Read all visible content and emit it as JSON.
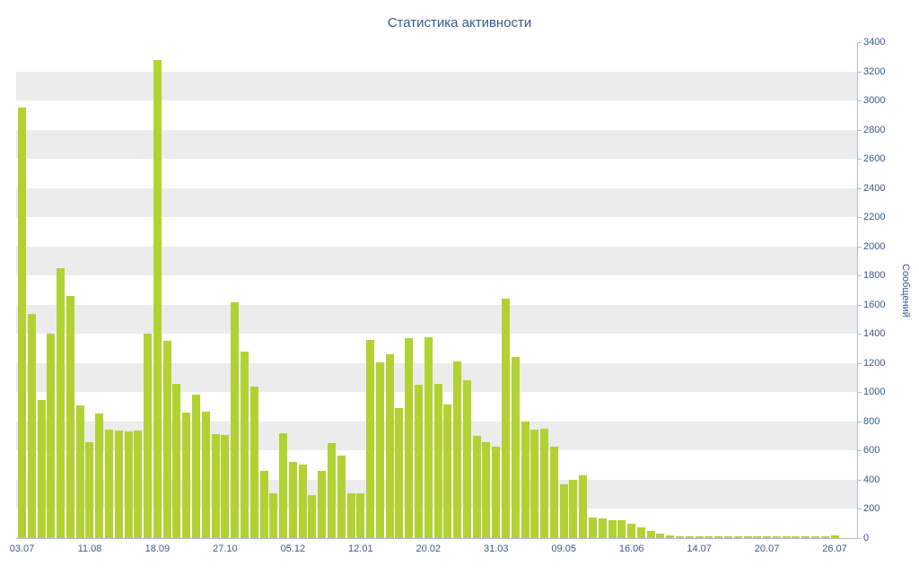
{
  "title": "Статистика активности",
  "chart_data": {
    "type": "bar",
    "title": "Статистика активности",
    "xlabel": "",
    "ylabel": "Сообщений",
    "ylim": [
      0,
      3400
    ],
    "y_tick_step": 200,
    "y_tick_labels": [
      "0",
      "200",
      "400",
      "600",
      "800",
      "1000",
      "1200",
      "1400",
      "1600",
      "1800",
      "2000",
      "2200",
      "2400",
      "2600",
      "2800",
      "3000",
      "3200",
      "3400"
    ],
    "x_tick_labels": [
      "03.07",
      "11.08",
      "18.09",
      "27.10",
      "05.12",
      "12.01",
      "20.02",
      "31.03",
      "09.05",
      "16.06",
      "14.07",
      "20.07",
      "26.07"
    ],
    "bars_per_tick": 7,
    "grid": "horizontal striped bands every 200 units",
    "legend": "none",
    "bar_color": "#b2d233",
    "values": [
      2950,
      1540,
      950,
      1400,
      1850,
      1660,
      910,
      660,
      855,
      745,
      735,
      730,
      740,
      1400,
      3280,
      1350,
      1060,
      860,
      985,
      865,
      715,
      710,
      1620,
      1280,
      1040,
      460,
      310,
      720,
      520,
      505,
      295,
      460,
      650,
      565,
      310,
      310,
      1360,
      1205,
      1260,
      890,
      1370,
      1050,
      1380,
      1060,
      915,
      1210,
      1080,
      700,
      660,
      630,
      1640,
      1240,
      800,
      745,
      750,
      625,
      370,
      400,
      430,
      140,
      135,
      125,
      120,
      100,
      75,
      50,
      30,
      20,
      15,
      10,
      10,
      10,
      15,
      10,
      10,
      15,
      10,
      10,
      15,
      10,
      10,
      10,
      15,
      10,
      20
    ]
  },
  "colors": {
    "bar": "#b2d233",
    "text": "#3a5a8c",
    "axis_line": "#aebed0",
    "band": "#ececec",
    "background": "#ffffff"
  }
}
